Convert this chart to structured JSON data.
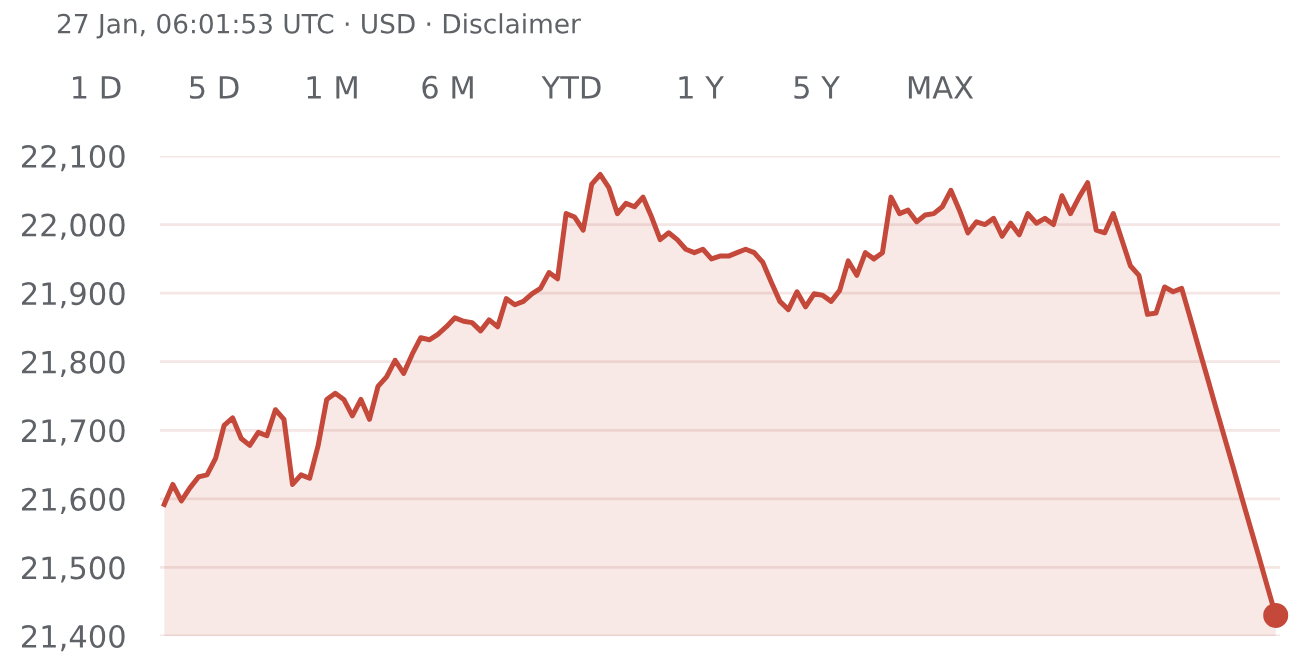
{
  "chart_data": {
    "type": "area",
    "annotations": [
      "27 Jan, 06:01:53 UTC · USD · Disclaimer",
      "1 D",
      "5 D",
      "1 M",
      "6 M",
      "YTD",
      "1 Y",
      "5 Y",
      "MAX"
    ],
    "categories": [
      null,
      null,
      null,
      null,
      null,
      null,
      null,
      null,
      null,
      null,
      null,
      null,
      null,
      null,
      null,
      null,
      null,
      null,
      null,
      null,
      null,
      null,
      null,
      null,
      null,
      null,
      null,
      null,
      null,
      null,
      null,
      null,
      null,
      null,
      null,
      null,
      null,
      null,
      null,
      null,
      null,
      null,
      null,
      null,
      null,
      null,
      null,
      null,
      null,
      null,
      null,
      null,
      null,
      null,
      null,
      null,
      null,
      null,
      null,
      null,
      null,
      null,
      null,
      null,
      null,
      null,
      null,
      null,
      null,
      null,
      null,
      null,
      null,
      null,
      null,
      null,
      null,
      null,
      null,
      null,
      null,
      null,
      null,
      null,
      null,
      null,
      null,
      null,
      null,
      null,
      null,
      null,
      null,
      null,
      null,
      null,
      null,
      null,
      null,
      null,
      null,
      null,
      null,
      null,
      null,
      null,
      null,
      null,
      null,
      null,
      null,
      null,
      null,
      null,
      null,
      null,
      null,
      null,
      null,
      null,
      null,
      null,
      null,
      null,
      null,
      null,
      null,
      null,
      null,
      null,
      null
    ],
    "series": [
      {
        "color": "#c5493a",
        "values": [
          21592,
          21621,
          21597,
          21616,
          21632,
          21635,
          21659,
          21707,
          21718,
          21688,
          21678,
          21697,
          21692,
          21730,
          21716,
          21621,
          21635,
          21630,
          21678,
          21745,
          21754,
          21745,
          21721,
          21745,
          21716,
          21764,
          21778,
          21802,
          21783,
          21811,
          21835,
          21832,
          21840,
          21851,
          21864,
          21859,
          21857,
          21845,
          21861,
          21851,
          21892,
          21883,
          21888,
          21899,
          21907,
          21930,
          21921,
          22016,
          22011,
          21992,
          22059,
          22073,
          22054,
          22016,
          22031,
          22026,
          22040,
          22011,
          21978,
          21988,
          21978,
          21964,
          21959,
          21964,
          21950,
          21954,
          21954,
          21959,
          21964,
          21959,
          21945,
          21916,
          21888,
          21876,
          21902,
          21880,
          21899,
          21897,
          21888,
          21904,
          21947,
          21926,
          21959,
          21950,
          21959,
          22040,
          22016,
          22021,
          22004,
          22014,
          22016,
          22026,
          22050,
          22021,
          21988,
          22004,
          22000,
          22009,
          21983,
          22002,
          21985,
          22016,
          22002,
          22009,
          22000,
          22042,
          22016,
          22040,
          22061,
          21992,
          21988,
          22016,
          21978,
          21940,
          21926,
          21869,
          21871,
          21909,
          21902,
          21907,
          21864,
          21820,
          21777,
          21733,
          21690,
          21647,
          21603,
          21560,
          21517,
          21473,
          21430
        ]
      }
    ],
    "ylim": [
      21400,
      22100
    ],
    "yticks": [
      {
        "value": 21400,
        "label": "21,400"
      },
      {
        "value": 21500,
        "label": "21,500"
      },
      {
        "value": 21600,
        "label": "21,600"
      },
      {
        "value": 21700,
        "label": "21,700"
      },
      {
        "value": 21800,
        "label": "21,800"
      },
      {
        "value": 21900,
        "label": "21,900"
      },
      {
        "value": 22000,
        "label": "22,000"
      },
      {
        "value": 22100,
        "label": "22,100"
      }
    ],
    "grid": "y",
    "tick_labels": "y",
    "legend": false
  }
}
